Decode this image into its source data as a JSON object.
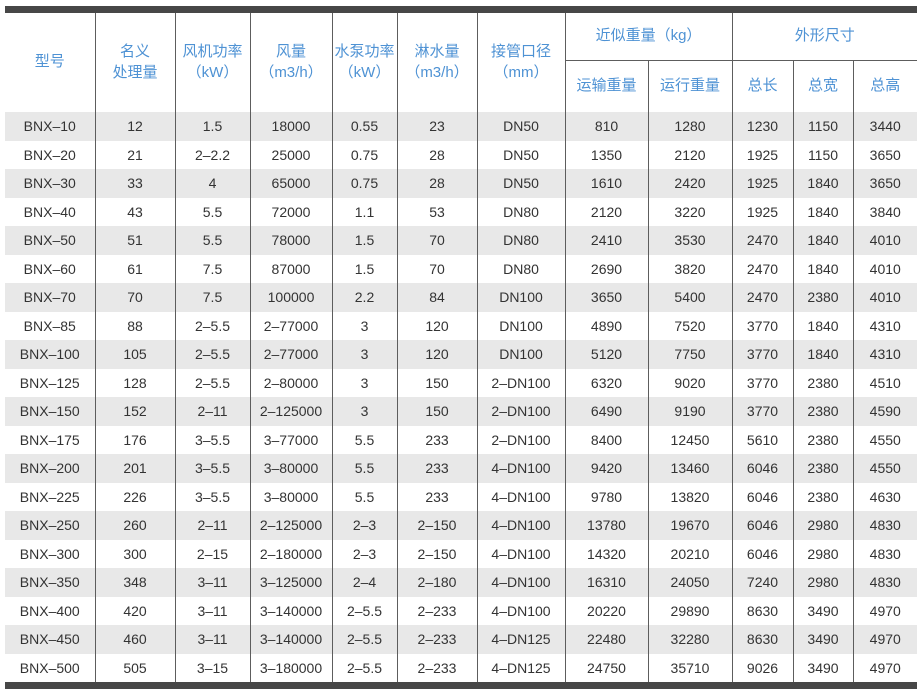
{
  "colors": {
    "header_text_blue": "#4e92d4",
    "body_text": "#333333",
    "stripe_gray": "#e8e8e8",
    "border_gray": "#5d5d5d",
    "frame_bar": "#474747"
  },
  "table": {
    "columns": [
      {
        "key": "model",
        "label": "型号"
      },
      {
        "key": "nominal_capacity",
        "label": "名义\n处理量"
      },
      {
        "key": "fan_power",
        "label": "风机功率\n（kW）"
      },
      {
        "key": "air_volume",
        "label": "风量\n（m3/h）"
      },
      {
        "key": "pump_power",
        "label": "水泵功率\n（kW）"
      },
      {
        "key": "spray_volume",
        "label": "淋水量\n（m3/h）"
      },
      {
        "key": "pipe_size",
        "label": "接管口径\n（mm）"
      }
    ],
    "groups": [
      {
        "key": "approx_weight",
        "label": "近似重量（kg）",
        "subs": [
          {
            "key": "transport_weight",
            "label": "运输重量"
          },
          {
            "key": "operating_weight",
            "label": "运行重量"
          }
        ]
      },
      {
        "key": "dimensions",
        "label": "外形尺寸",
        "subs": [
          {
            "key": "total_length",
            "label": "总长"
          },
          {
            "key": "total_width",
            "label": "总宽"
          },
          {
            "key": "total_height",
            "label": "总高"
          }
        ]
      }
    ],
    "rows": [
      [
        "BNX–10",
        "12",
        "1.5",
        "18000",
        "0.55",
        "23",
        "DN50",
        "810",
        "1280",
        "1230",
        "1150",
        "3440"
      ],
      [
        "BNX–20",
        "21",
        "2–2.2",
        "25000",
        "0.75",
        "28",
        "DN50",
        "1350",
        "2120",
        "1925",
        "1150",
        "3650"
      ],
      [
        "BNX–30",
        "33",
        "4",
        "65000",
        "0.75",
        "28",
        "DN50",
        "1610",
        "2420",
        "1925",
        "1840",
        "3650"
      ],
      [
        "BNX–40",
        "43",
        "5.5",
        "72000",
        "1.1",
        "53",
        "DN80",
        "2120",
        "3220",
        "1925",
        "1840",
        "3840"
      ],
      [
        "BNX–50",
        "51",
        "5.5",
        "78000",
        "1.5",
        "70",
        "DN80",
        "2410",
        "3530",
        "2470",
        "1840",
        "4010"
      ],
      [
        "BNX–60",
        "61",
        "7.5",
        "87000",
        "1.5",
        "70",
        "DN80",
        "2690",
        "3820",
        "2470",
        "1840",
        "4010"
      ],
      [
        "BNX–70",
        "70",
        "7.5",
        "100000",
        "2.2",
        "84",
        "DN100",
        "3650",
        "5400",
        "2470",
        "2380",
        "4010"
      ],
      [
        "BNX–85",
        "88",
        "2–5.5",
        "2–77000",
        "3",
        "120",
        "DN100",
        "4890",
        "7520",
        "3770",
        "1840",
        "4310"
      ],
      [
        "BNX–100",
        "105",
        "2–5.5",
        "2–77000",
        "3",
        "120",
        "DN100",
        "5120",
        "7750",
        "3770",
        "1840",
        "4310"
      ],
      [
        "BNX–125",
        "128",
        "2–5.5",
        "2–80000",
        "3",
        "150",
        "2–DN100",
        "6320",
        "9020",
        "3770",
        "2380",
        "4510"
      ],
      [
        "BNX–150",
        "152",
        "2–11",
        "2–125000",
        "3",
        "150",
        "2–DN100",
        "6490",
        "9190",
        "3770",
        "2380",
        "4590"
      ],
      [
        "BNX–175",
        "176",
        "3–5.5",
        "3–77000",
        "5.5",
        "233",
        "2–DN100",
        "8400",
        "12450",
        "5610",
        "2380",
        "4550"
      ],
      [
        "BNX–200",
        "201",
        "3–5.5",
        "3–80000",
        "5.5",
        "233",
        "4–DN100",
        "9420",
        "13460",
        "6046",
        "2380",
        "4550"
      ],
      [
        "BNX–225",
        "226",
        "3–5.5",
        "3–80000",
        "5.5",
        "233",
        "4–DN100",
        "9780",
        "13820",
        "6046",
        "2380",
        "4630"
      ],
      [
        "BNX–250",
        "260",
        "2–11",
        "2–125000",
        "2–3",
        "2–150",
        "4–DN100",
        "13780",
        "19670",
        "6046",
        "2980",
        "4830"
      ],
      [
        "BNX–300",
        "300",
        "2–15",
        "2–180000",
        "2–3",
        "2–150",
        "4–DN100",
        "14320",
        "20210",
        "6046",
        "2980",
        "4830"
      ],
      [
        "BNX–350",
        "348",
        "3–11",
        "3–125000",
        "2–4",
        "2–180",
        "4–DN100",
        "16310",
        "24050",
        "7240",
        "2980",
        "4830"
      ],
      [
        "BNX–400",
        "420",
        "3–11",
        "3–140000",
        "2–5.5",
        "2–233",
        "4–DN100",
        "20220",
        "29890",
        "8630",
        "3490",
        "4970"
      ],
      [
        "BNX–450",
        "460",
        "3–11",
        "3–140000",
        "2–5.5",
        "2–233",
        "4–DN125",
        "22480",
        "32280",
        "8630",
        "3490",
        "4970"
      ],
      [
        "BNX–500",
        "505",
        "3–15",
        "3–180000",
        "2–5.5",
        "2–233",
        "4–DN125",
        "24750",
        "35710",
        "9026",
        "3490",
        "4970"
      ]
    ]
  }
}
